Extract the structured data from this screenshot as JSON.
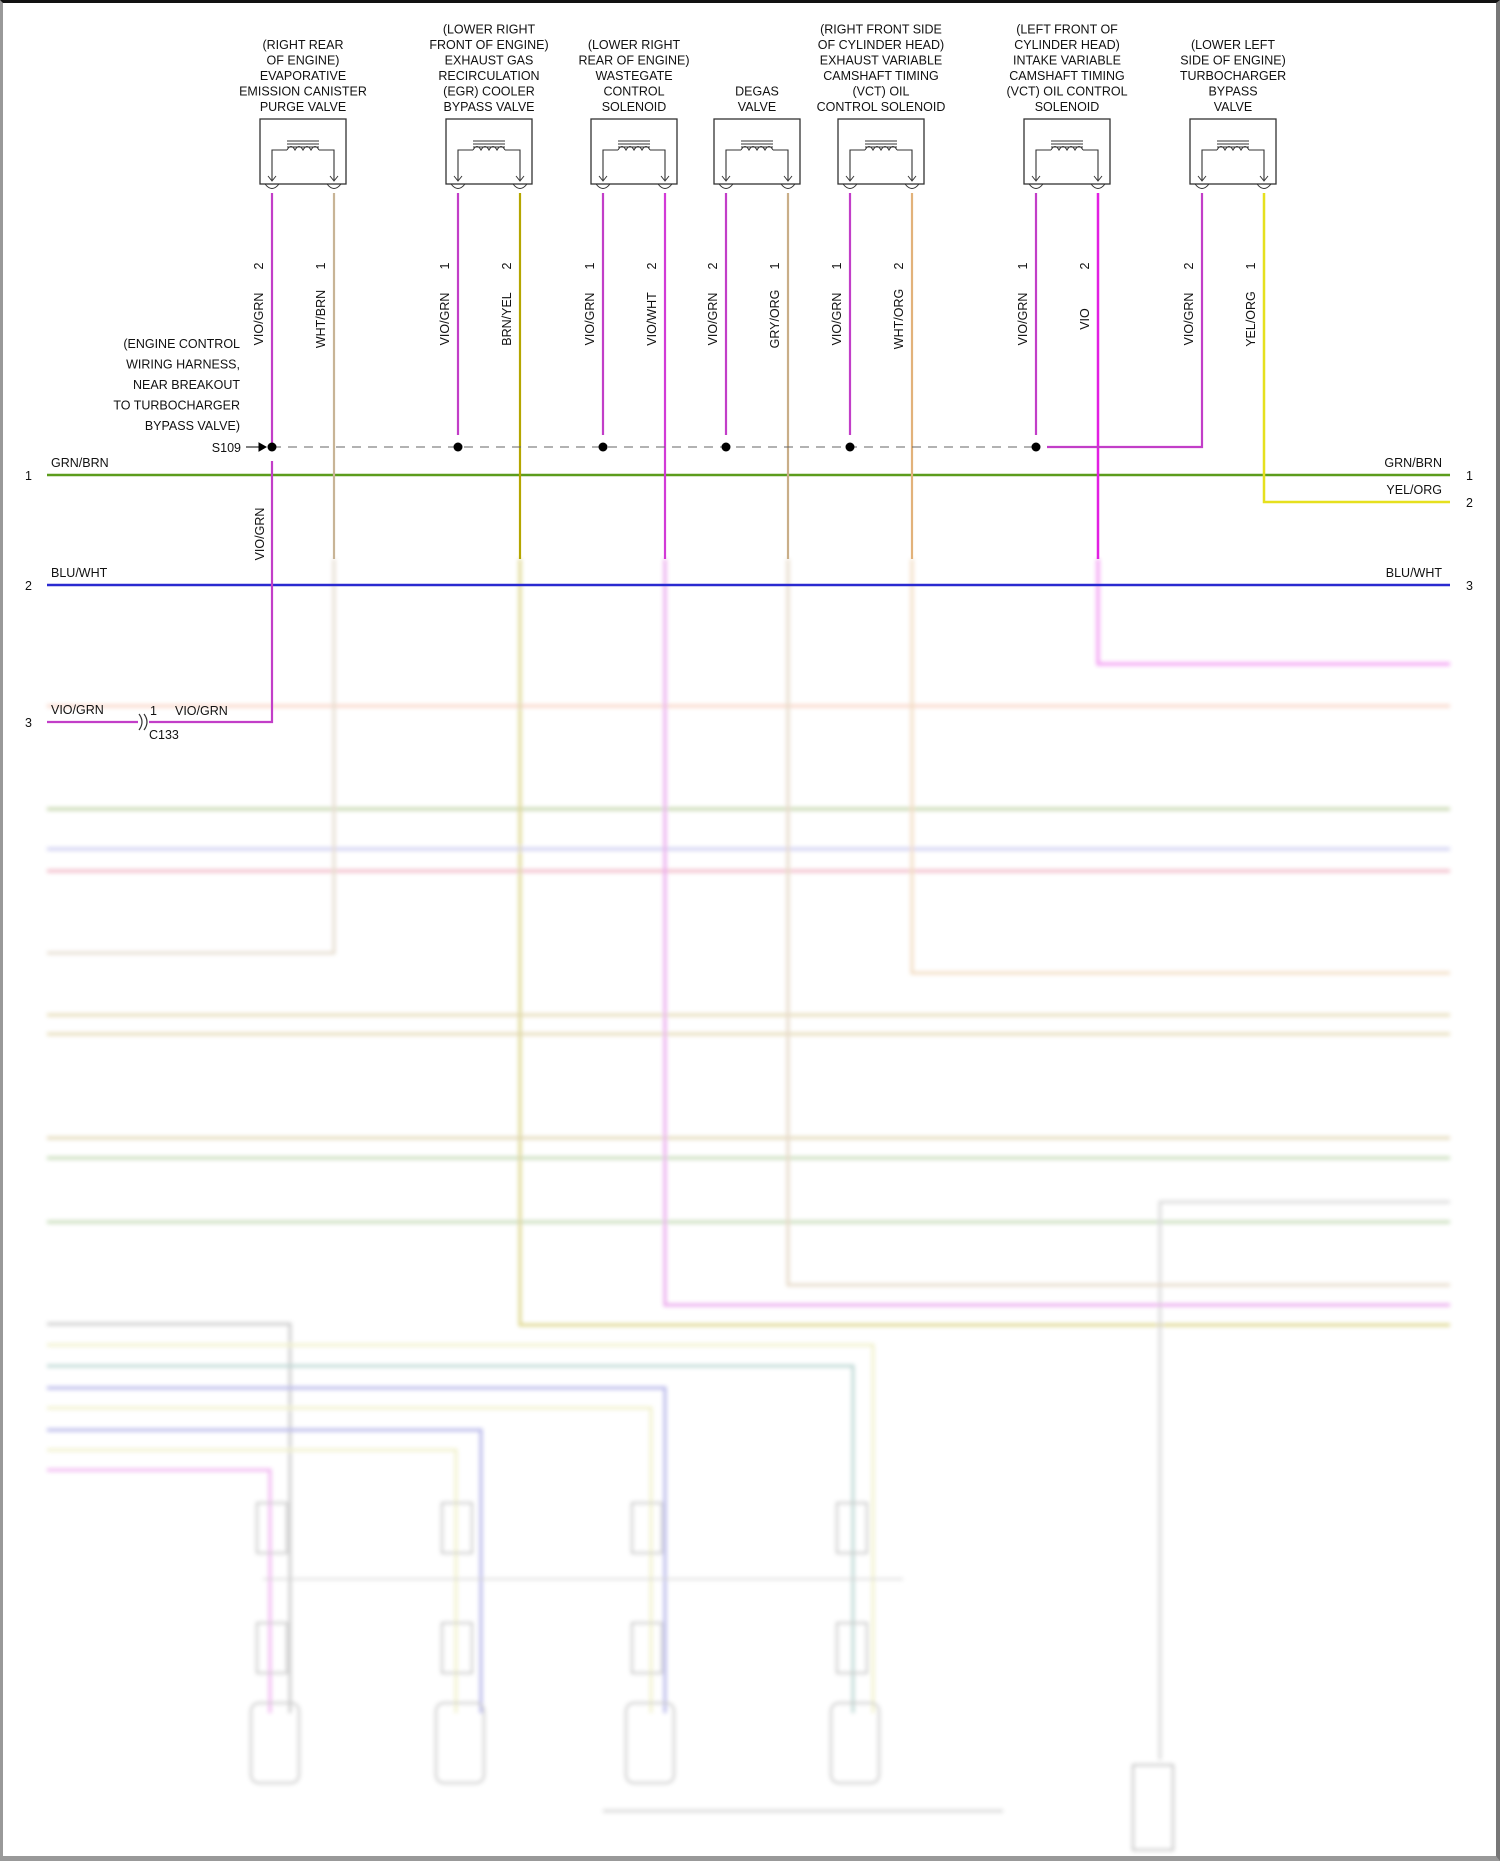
{
  "diagram": {
    "components": [
      {
        "label": [
          "(RIGHT REAR",
          "OF ENGINE)",
          "EVAPORATIVE",
          "EMISSION CANISTER",
          "PURGE VALVE"
        ],
        "pins": [
          {
            "num": "2",
            "wire": "VIO/GRN"
          },
          {
            "num": "1",
            "wire": "WHT/BRN"
          }
        ]
      },
      {
        "label": [
          "(LOWER RIGHT",
          "FRONT OF ENGINE)",
          "EXHAUST GAS",
          "RECIRCULATION",
          "(EGR) COOLER",
          "BYPASS VALVE"
        ],
        "pins": [
          {
            "num": "1",
            "wire": "VIO/GRN"
          },
          {
            "num": "2",
            "wire": "BRN/YEL"
          }
        ]
      },
      {
        "label": [
          "(LOWER RIGHT",
          "REAR OF ENGINE)",
          "WASTEGATE",
          "CONTROL",
          "SOLENOID"
        ],
        "pins": [
          {
            "num": "1",
            "wire": "VIO/GRN"
          },
          {
            "num": "2",
            "wire": "VIO/WHT"
          }
        ]
      },
      {
        "label": [
          "DEGAS",
          "VALVE"
        ],
        "pins": [
          {
            "num": "2",
            "wire": "VIO/GRN"
          },
          {
            "num": "1",
            "wire": "GRY/ORG"
          }
        ]
      },
      {
        "label": [
          "(RIGHT FRONT SIDE",
          "OF CYLINDER HEAD)",
          "EXHAUST VARIABLE",
          "CAMSHAFT TIMING",
          "(VCT) OIL",
          "CONTROL SOLENOID"
        ],
        "pins": [
          {
            "num": "1",
            "wire": "VIO/GRN"
          },
          {
            "num": "2",
            "wire": "WHT/ORG"
          }
        ]
      },
      {
        "label": [
          "(LEFT FRONT OF",
          "CYLINDER HEAD)",
          "INTAKE VARIABLE",
          "CAMSHAFT TIMING",
          "(VCT) OIL CONTROL",
          "SOLENOID"
        ],
        "pins": [
          {
            "num": "1",
            "wire": "VIO/GRN"
          },
          {
            "num": "2",
            "wire": "VIO"
          }
        ]
      },
      {
        "label": [
          "(LOWER LEFT",
          "SIDE OF ENGINE)",
          "TURBOCHARGER",
          "BYPASS",
          "VALVE"
        ],
        "pins": [
          {
            "num": "2",
            "wire": "VIO/GRN"
          },
          {
            "num": "1",
            "wire": "YEL/ORG"
          }
        ]
      }
    ],
    "splice": {
      "id": "S109",
      "note": [
        "(ENGINE CONTROL",
        "WIRING HARNESS,",
        "NEAR BREAKOUT",
        "TO TURBOCHARGER",
        "BYPASS VALVE)"
      ],
      "wire_below": "VIO/GRN"
    },
    "left_rows": [
      {
        "num": "1",
        "wire": "GRN/BRN"
      },
      {
        "num": "2",
        "wire": "BLU/WHT"
      },
      {
        "num": "3",
        "wire": "VIO/GRN"
      }
    ],
    "right_rows": [
      {
        "num": "1",
        "wire": "GRN/BRN"
      },
      {
        "num": "2",
        "wire": "YEL/ORG"
      },
      {
        "num": "3",
        "wire": "BLU/WHT"
      }
    ],
    "connector": {
      "id": "C133",
      "pin": "1",
      "wire_out": "VIO/GRN"
    },
    "wire_colors": {
      "VIO/GRN": "#c23ec8",
      "VIO": "#e21fe2",
      "VIO/WHT": "#d23ad6",
      "WHT/BRN": "#c8b496",
      "BRN/YEL": "#b5a600",
      "GRY/ORG": "#c9ae88",
      "WHT/ORG": "#e2b27a",
      "YEL/ORG": "#e6e01e",
      "GRN/BRN": "#5c9c1c",
      "BLU/WHT": "#2a2ad0"
    }
  }
}
